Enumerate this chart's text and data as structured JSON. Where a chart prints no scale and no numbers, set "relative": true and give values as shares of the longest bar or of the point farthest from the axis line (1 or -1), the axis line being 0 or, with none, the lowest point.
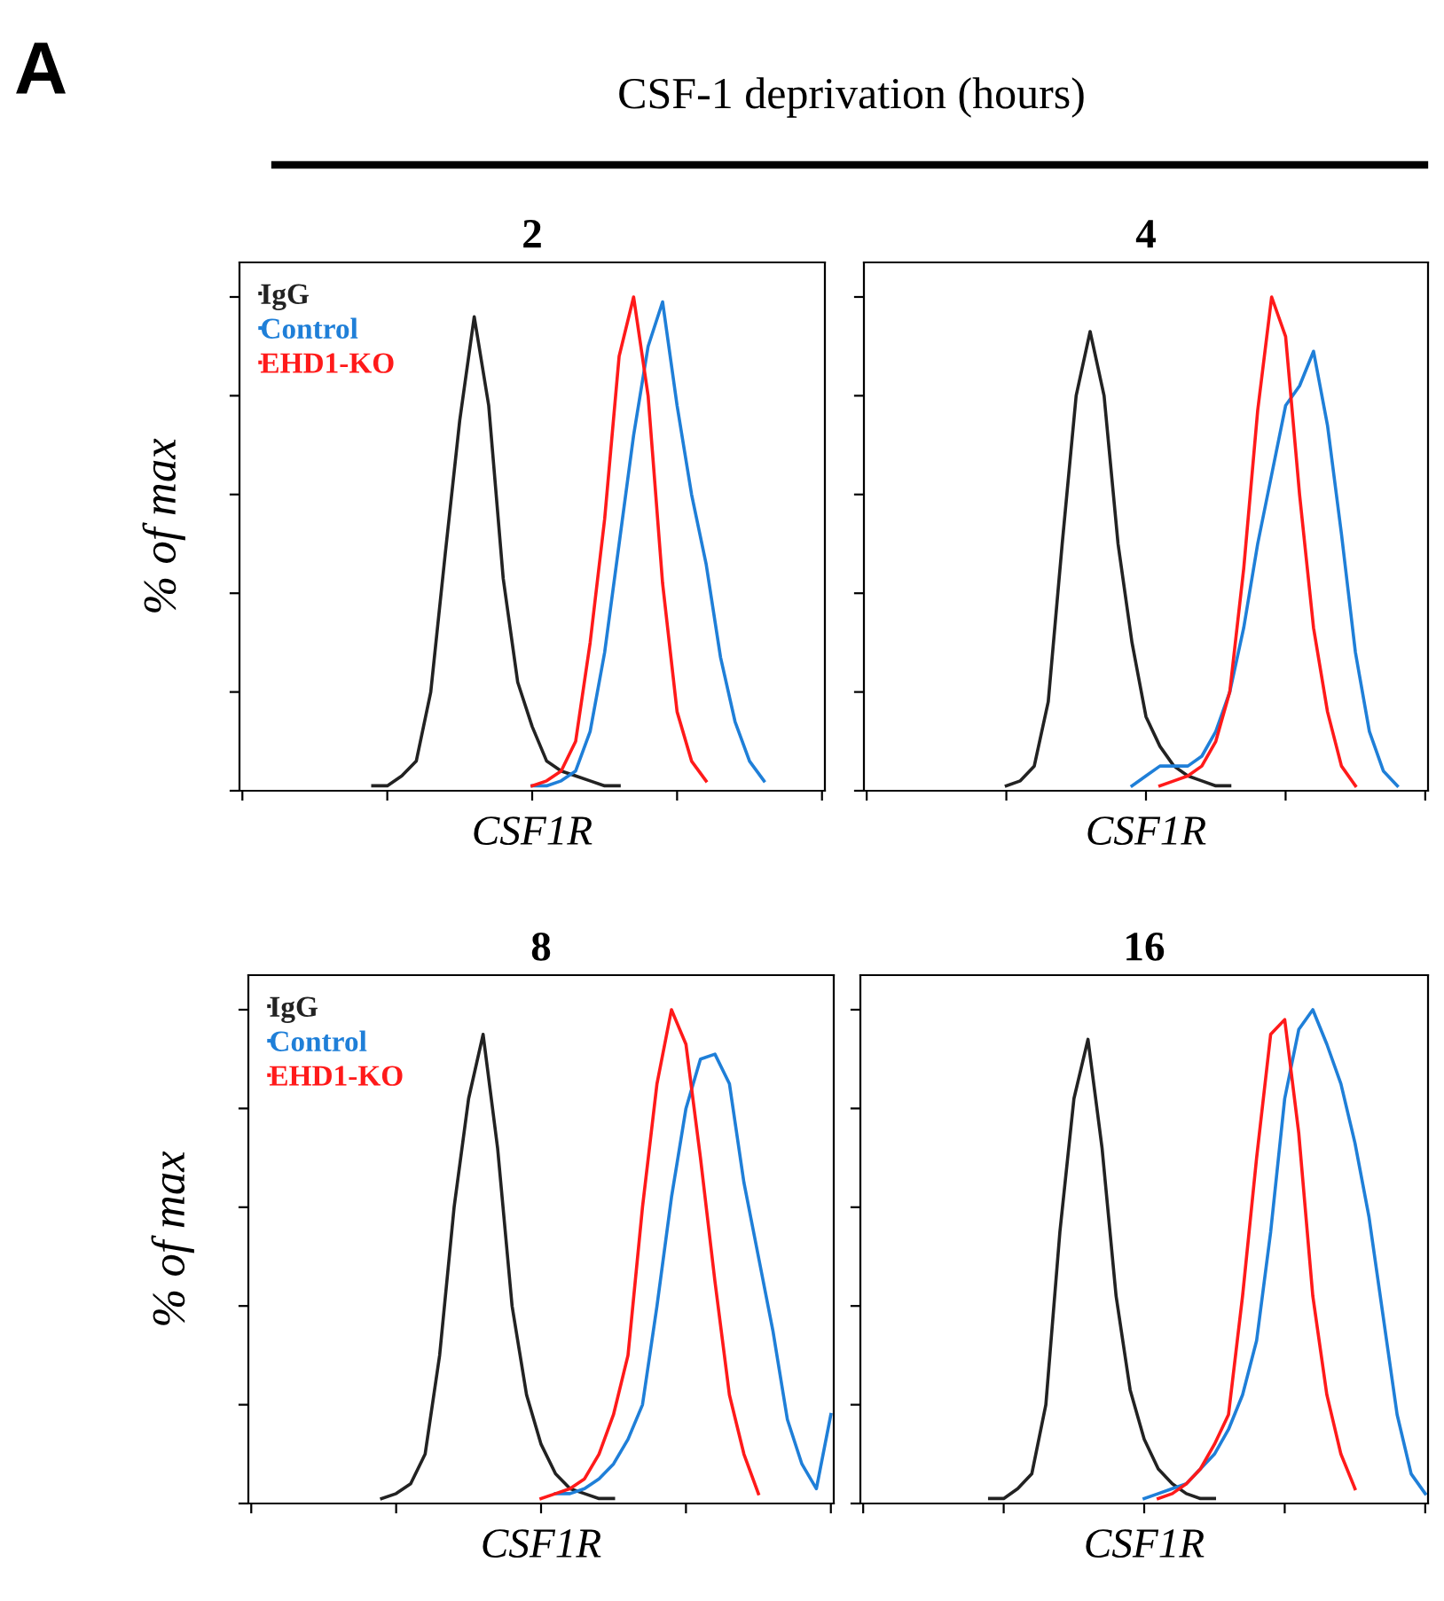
{
  "chart_data": [
    {
      "type": "line",
      "title": "2",
      "xlabel": "CSF1R",
      "ylabel": "% of max",
      "relative": true,
      "tick_labels": false,
      "legend": "top left",
      "grid": false,
      "annotations": [
        "A",
        "CSF-1 deprivation (hours)"
      ],
      "categories": [
        null,
        null,
        null,
        null,
        null,
        null,
        null,
        null,
        null,
        null,
        null,
        null,
        null,
        null,
        null,
        null,
        null,
        null,
        null,
        null,
        null,
        null,
        null,
        null,
        null,
        null,
        null,
        null,
        null,
        null,
        null,
        null,
        null,
        null,
        null,
        null,
        null,
        null,
        null,
        null,
        null
      ],
      "series": [
        {
          "name": "IgG",
          "color": "#222222",
          "values": [
            null,
            null,
            null,
            null,
            null,
            null,
            null,
            null,
            null,
            0.01,
            0.01,
            0.03,
            0.06,
            0.2,
            0.48,
            0.75,
            0.96,
            0.78,
            0.43,
            0.22,
            0.13,
            0.06,
            0.04,
            0.03,
            0.02,
            0.01,
            0.01,
            null,
            null,
            null,
            null,
            null,
            null,
            null,
            null,
            null,
            null,
            null,
            null,
            null,
            null
          ]
        },
        {
          "name": "Control",
          "color": "#1f7fd8",
          "values": [
            null,
            null,
            null,
            null,
            null,
            null,
            null,
            null,
            null,
            null,
            null,
            null,
            null,
            null,
            null,
            null,
            null,
            null,
            null,
            null,
            0.01,
            0.01,
            0.02,
            0.04,
            0.12,
            0.28,
            0.5,
            0.72,
            0.9,
            0.99,
            0.78,
            0.6,
            0.46,
            0.27,
            0.14,
            0.06,
            0.02,
            null,
            null,
            null,
            null
          ]
        },
        {
          "name": "EHD1-KO",
          "color": "#ff1a1a",
          "values": [
            null,
            null,
            null,
            null,
            null,
            null,
            null,
            null,
            null,
            null,
            null,
            null,
            null,
            null,
            null,
            null,
            null,
            null,
            null,
            null,
            0.01,
            0.02,
            0.04,
            0.1,
            0.3,
            0.55,
            0.88,
            1.0,
            0.8,
            0.42,
            0.16,
            0.06,
            0.02,
            null,
            null,
            null,
            null,
            null,
            null,
            null,
            null
          ]
        }
      ]
    },
    {
      "type": "line",
      "title": "4",
      "xlabel": "CSF1R",
      "relative": true,
      "tick_labels": false,
      "grid": false,
      "categories": [
        null,
        null,
        null,
        null,
        null,
        null,
        null,
        null,
        null,
        null,
        null,
        null,
        null,
        null,
        null,
        null,
        null,
        null,
        null,
        null,
        null,
        null,
        null,
        null,
        null,
        null,
        null,
        null,
        null,
        null,
        null,
        null,
        null,
        null,
        null,
        null,
        null,
        null,
        null,
        null,
        null
      ],
      "series": [
        {
          "color": "#222222",
          "values": [
            null,
            null,
            null,
            null,
            null,
            null,
            null,
            null,
            null,
            null,
            0.01,
            0.02,
            0.05,
            0.18,
            0.5,
            0.8,
            0.93,
            0.8,
            0.5,
            0.3,
            0.15,
            0.09,
            0.05,
            0.03,
            0.02,
            0.01,
            0.01,
            null,
            null,
            null,
            null,
            null,
            null,
            null,
            null,
            null,
            null,
            null,
            null,
            null,
            null
          ]
        },
        {
          "color": "#1f7fd8",
          "values": [
            null,
            null,
            null,
            null,
            null,
            null,
            null,
            null,
            null,
            null,
            null,
            null,
            null,
            null,
            null,
            null,
            null,
            null,
            null,
            0.01,
            0.03,
            0.05,
            0.05,
            0.05,
            0.07,
            0.12,
            0.2,
            0.33,
            0.5,
            0.64,
            0.78,
            0.82,
            0.89,
            0.74,
            0.52,
            0.28,
            0.12,
            0.04,
            0.01,
            null,
            null
          ]
        },
        {
          "color": "#ff1a1a",
          "values": [
            null,
            null,
            null,
            null,
            null,
            null,
            null,
            null,
            null,
            null,
            null,
            null,
            null,
            null,
            null,
            null,
            null,
            null,
            null,
            null,
            null,
            0.01,
            0.02,
            0.03,
            0.05,
            0.1,
            0.2,
            0.45,
            0.77,
            1.0,
            0.92,
            0.6,
            0.33,
            0.16,
            0.05,
            0.01,
            null,
            null,
            null,
            null,
            null
          ]
        }
      ]
    },
    {
      "type": "line",
      "title": "8",
      "xlabel": "CSF1R",
      "ylabel": "% of max",
      "relative": true,
      "tick_labels": false,
      "legend": "top left",
      "grid": false,
      "categories": [
        null,
        null,
        null,
        null,
        null,
        null,
        null,
        null,
        null,
        null,
        null,
        null,
        null,
        null,
        null,
        null,
        null,
        null,
        null,
        null,
        null,
        null,
        null,
        null,
        null,
        null,
        null,
        null,
        null,
        null,
        null,
        null,
        null,
        null,
        null,
        null,
        null,
        null,
        null,
        null,
        null
      ],
      "series": [
        {
          "name": "IgG",
          "color": "#222222",
          "values": [
            null,
            null,
            null,
            null,
            null,
            null,
            null,
            null,
            null,
            0.01,
            0.02,
            0.04,
            0.1,
            0.3,
            0.6,
            0.82,
            0.95,
            0.72,
            0.4,
            0.22,
            0.12,
            0.06,
            0.03,
            0.02,
            0.01,
            0.01,
            null,
            null,
            null,
            null,
            null,
            null,
            null,
            null,
            null,
            null,
            null,
            null,
            null,
            null,
            null
          ]
        },
        {
          "name": "Control",
          "color": "#1f7fd8",
          "values": [
            null,
            null,
            null,
            null,
            null,
            null,
            null,
            null,
            null,
            null,
            null,
            null,
            null,
            null,
            null,
            null,
            null,
            null,
            null,
            null,
            null,
            0.02,
            0.02,
            0.03,
            0.05,
            0.08,
            0.13,
            0.2,
            0.4,
            0.62,
            0.8,
            0.9,
            0.91,
            0.85,
            0.65,
            0.5,
            0.35,
            0.17,
            0.08,
            0.03,
            0.18
          ]
        },
        {
          "name": "EHD1-KO",
          "color": "#ff1a1a",
          "values": [
            null,
            null,
            null,
            null,
            null,
            null,
            null,
            null,
            null,
            null,
            null,
            null,
            null,
            null,
            null,
            null,
            null,
            null,
            null,
            null,
            0.01,
            0.02,
            0.03,
            0.05,
            0.1,
            0.18,
            0.3,
            0.6,
            0.85,
            1.0,
            0.93,
            0.7,
            0.45,
            0.22,
            0.1,
            0.02,
            null,
            null,
            null,
            null,
            null
          ]
        }
      ]
    },
    {
      "type": "line",
      "title": "16",
      "xlabel": "CSF1R",
      "relative": true,
      "tick_labels": false,
      "grid": false,
      "categories": [
        null,
        null,
        null,
        null,
        null,
        null,
        null,
        null,
        null,
        null,
        null,
        null,
        null,
        null,
        null,
        null,
        null,
        null,
        null,
        null,
        null,
        null,
        null,
        null,
        null,
        null,
        null,
        null,
        null,
        null,
        null,
        null,
        null,
        null,
        null,
        null,
        null,
        null,
        null,
        null,
        null
      ],
      "series": [
        {
          "color": "#222222",
          "values": [
            null,
            null,
            null,
            null,
            null,
            null,
            null,
            null,
            null,
            0.01,
            0.01,
            0.03,
            0.06,
            0.2,
            0.55,
            0.82,
            0.94,
            0.72,
            0.42,
            0.23,
            0.13,
            0.07,
            0.04,
            0.02,
            0.01,
            0.01,
            null,
            null,
            null,
            null,
            null,
            null,
            null,
            null,
            null,
            null,
            null,
            null,
            null,
            null,
            null
          ]
        },
        {
          "color": "#1f7fd8",
          "values": [
            null,
            null,
            null,
            null,
            null,
            null,
            null,
            null,
            null,
            null,
            null,
            null,
            null,
            null,
            null,
            null,
            null,
            null,
            null,
            null,
            0.01,
            0.02,
            0.03,
            0.04,
            0.07,
            0.1,
            0.15,
            0.22,
            0.33,
            0.55,
            0.82,
            0.96,
            1.0,
            0.93,
            0.85,
            0.73,
            0.58,
            0.38,
            0.18,
            0.06,
            0.02
          ]
        },
        {
          "color": "#ff1a1a",
          "values": [
            null,
            null,
            null,
            null,
            null,
            null,
            null,
            null,
            null,
            null,
            null,
            null,
            null,
            null,
            null,
            null,
            null,
            null,
            null,
            null,
            null,
            0.01,
            0.02,
            0.04,
            0.07,
            0.12,
            0.18,
            0.42,
            0.7,
            0.95,
            0.98,
            0.75,
            0.42,
            0.22,
            0.1,
            0.03,
            null,
            null,
            null,
            null,
            null
          ]
        }
      ]
    }
  ]
}
